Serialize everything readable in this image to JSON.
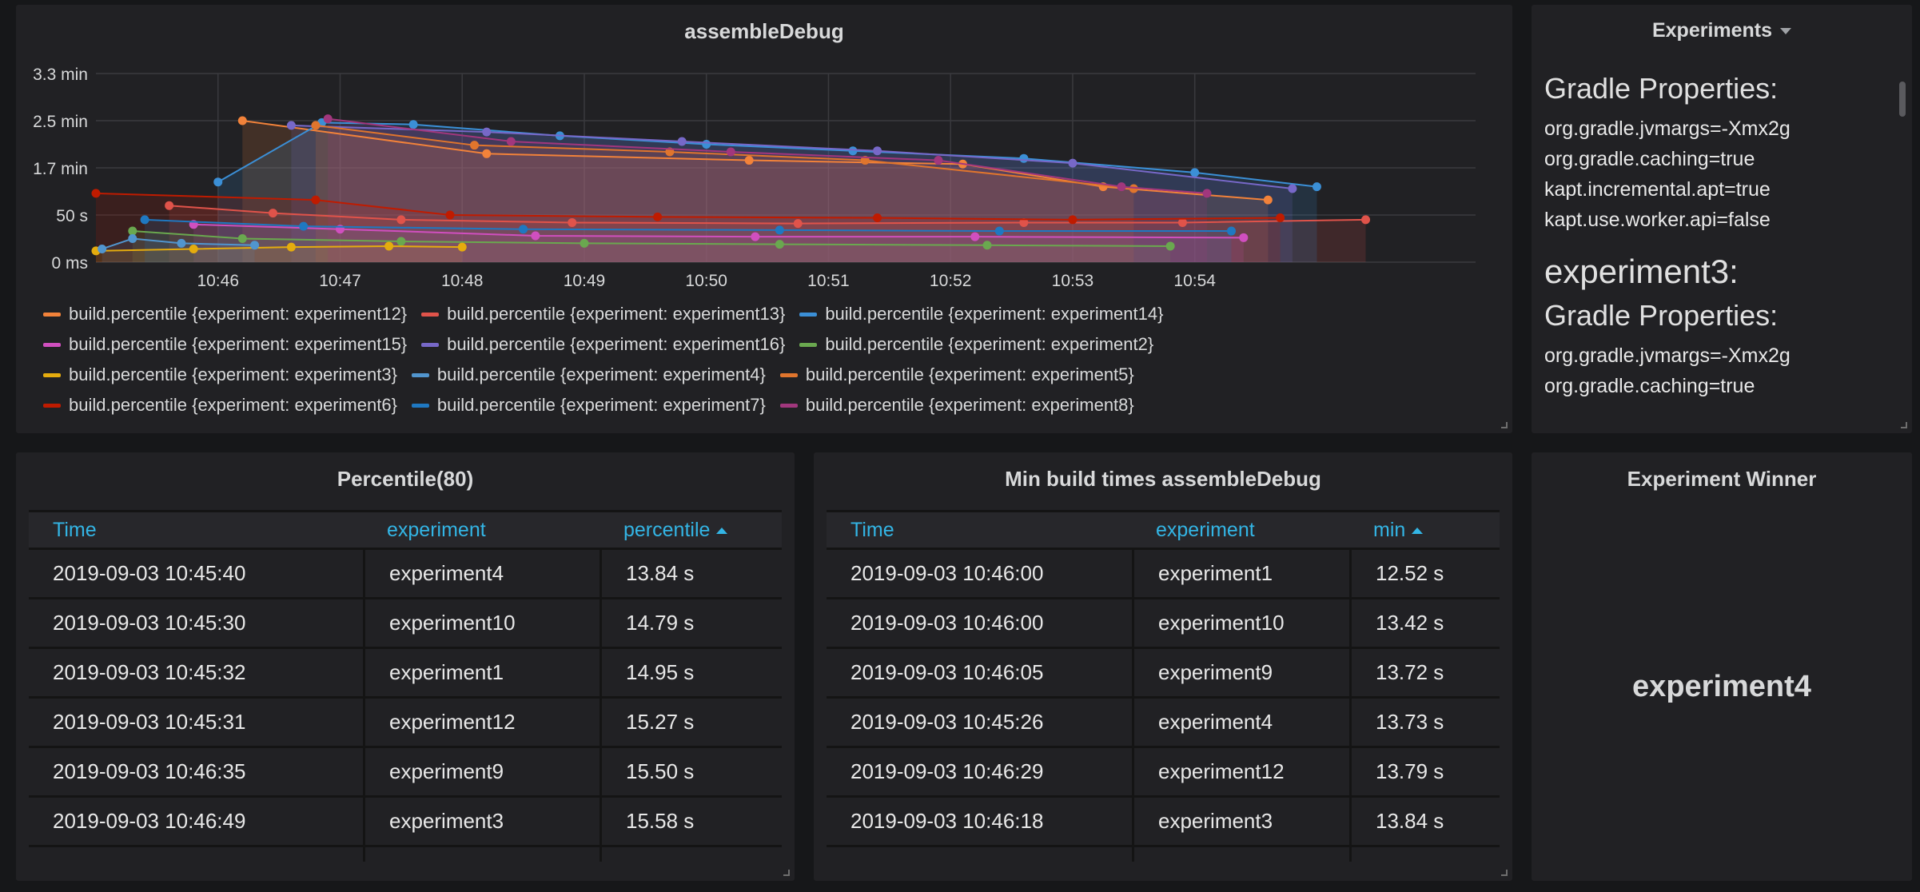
{
  "graph": {
    "title": "assembleDebug",
    "y_ticks": [
      "3.3 min",
      "2.5 min",
      "1.7 min",
      "50 s",
      "0 ms"
    ],
    "x_ticks": [
      "10:46",
      "10:47",
      "10:48",
      "10:49",
      "10:50",
      "10:51",
      "10:52",
      "10:53",
      "10:54"
    ]
  },
  "chart_data": {
    "type": "area",
    "title": "assembleDebug",
    "x_ticks": [
      "10:46",
      "10:47",
      "10:48",
      "10:49",
      "10:50",
      "10:51",
      "10:52",
      "10:53",
      "10:54"
    ],
    "y_ticks": [
      "0 ms",
      "50 s",
      "1.7 min",
      "2.5 min",
      "3.3 min"
    ],
    "ylim_seconds": [
      0,
      200
    ],
    "x_unit": "minutes since 10:45 (approx)",
    "series": [
      {
        "name": "build.percentile {experiment: experiment12}",
        "color": "#f2823a",
        "points": [
          [
            1.2,
            150
          ],
          [
            3.2,
            115
          ],
          [
            5.35,
            108
          ],
          [
            7.1,
            104
          ],
          [
            8.25,
            80
          ],
          [
            9.6,
            66
          ]
        ]
      },
      {
        "name": "build.percentile {experiment: experiment13}",
        "color": "#e0534a",
        "points": [
          [
            0.6,
            60
          ],
          [
            1.45,
            52
          ],
          [
            2.5,
            45
          ],
          [
            3.9,
            42
          ],
          [
            5.75,
            41
          ],
          [
            7.6,
            42
          ],
          [
            8.9,
            42
          ],
          [
            10.4,
            45
          ]
        ]
      },
      {
        "name": "build.percentile {experiment: experiment14}",
        "color": "#3b8fd6",
        "points": [
          [
            1.0,
            85
          ],
          [
            1.85,
            148
          ],
          [
            2.6,
            146
          ],
          [
            3.8,
            134
          ],
          [
            5.0,
            125
          ],
          [
            6.2,
            118
          ],
          [
            7.6,
            110
          ],
          [
            9.0,
            95
          ],
          [
            10.0,
            80
          ]
        ]
      },
      {
        "name": "build.percentile {experiment: experiment15}",
        "color": "#d04fbf",
        "points": [
          [
            0.8,
            40
          ],
          [
            2.0,
            35
          ],
          [
            3.6,
            28
          ],
          [
            5.4,
            27
          ],
          [
            7.2,
            27
          ],
          [
            9.4,
            26
          ]
        ]
      },
      {
        "name": "build.percentile {experiment: experiment16}",
        "color": "#7768c8",
        "points": [
          [
            1.6,
            145
          ],
          [
            3.2,
            138
          ],
          [
            4.8,
            128
          ],
          [
            6.4,
            118
          ],
          [
            8.0,
            105
          ],
          [
            9.8,
            78
          ]
        ]
      },
      {
        "name": "build.percentile {experiment: experiment2}",
        "color": "#6aa84f",
        "points": [
          [
            0.3,
            33
          ],
          [
            1.2,
            25
          ],
          [
            2.5,
            22
          ],
          [
            4.0,
            20
          ],
          [
            5.6,
            19
          ],
          [
            7.3,
            18
          ],
          [
            8.8,
            17
          ]
        ]
      },
      {
        "name": "build.percentile {experiment: experiment3}",
        "color": "#e5ac0e",
        "points": [
          [
            0.0,
            12
          ],
          [
            0.8,
            14
          ],
          [
            1.6,
            16
          ],
          [
            2.4,
            17
          ],
          [
            3.0,
            16
          ]
        ]
      },
      {
        "name": "build.percentile {experiment: experiment4}",
        "color": "#5195ce",
        "points": [
          [
            0.05,
            14
          ],
          [
            0.3,
            25
          ],
          [
            0.7,
            20
          ],
          [
            1.3,
            18
          ]
        ]
      },
      {
        "name": "build.percentile {experiment: experiment5}",
        "color": "#e0752d",
        "points": [
          [
            1.8,
            145
          ],
          [
            3.1,
            124
          ],
          [
            4.7,
            117
          ],
          [
            6.3,
            108
          ],
          [
            8.5,
            78
          ]
        ]
      },
      {
        "name": "build.percentile {experiment: experiment6}",
        "color": "#bf1b00",
        "points": [
          [
            0.0,
            73
          ],
          [
            1.8,
            66
          ],
          [
            2.9,
            50
          ],
          [
            4.6,
            48
          ],
          [
            6.4,
            47
          ],
          [
            8.0,
            45
          ],
          [
            9.7,
            47
          ]
        ]
      },
      {
        "name": "build.percentile {experiment: experiment7}",
        "color": "#1f78c1",
        "points": [
          [
            0.4,
            45
          ],
          [
            1.7,
            38
          ],
          [
            3.5,
            35
          ],
          [
            5.6,
            34
          ],
          [
            7.4,
            33
          ],
          [
            9.3,
            33
          ]
        ]
      },
      {
        "name": "build.percentile {experiment: experiment8}",
        "color": "#a1377d",
        "points": [
          [
            1.9,
            152
          ],
          [
            3.4,
            128
          ],
          [
            5.2,
            117
          ],
          [
            6.9,
            108
          ],
          [
            8.4,
            80
          ],
          [
            9.1,
            73
          ]
        ]
      }
    ]
  },
  "legend": [
    [
      "build.percentile {experiment: experiment12}",
      "build.percentile {experiment: experiment13}",
      "build.percentile {experiment: experiment14}"
    ],
    [
      "build.percentile {experiment: experiment15}",
      "build.percentile {experiment: experiment16}",
      "build.percentile {experiment: experiment2}"
    ],
    [
      "build.percentile {experiment: experiment3}",
      "build.percentile {experiment: experiment4}",
      "build.percentile {experiment: experiment5}"
    ],
    [
      "build.percentile {experiment: experiment6}",
      "build.percentile {experiment: experiment7}",
      "build.percentile {experiment: experiment8}"
    ]
  ],
  "legend_colors": [
    [
      "#f2823a",
      "#e0534a",
      "#3b8fd6"
    ],
    [
      "#d04fbf",
      "#7768c8",
      "#6aa84f"
    ],
    [
      "#e5ac0e",
      "#5195ce",
      "#e0752d"
    ],
    [
      "#bf1b00",
      "#1f78c1",
      "#a1377d"
    ]
  ],
  "experiments": {
    "title": "Experiments",
    "heading1": "Gradle Properties:",
    "props1": [
      "org.gradle.jvmargs=-Xmx2g",
      "org.gradle.caching=true",
      "kapt.incremental.apt=true",
      "kapt.use.worker.api=false"
    ],
    "section": "experiment3:",
    "heading2": "Gradle Properties:",
    "props2": [
      "org.gradle.jvmargs=-Xmx2g",
      "org.gradle.caching=true"
    ]
  },
  "percentile_table": {
    "title": "Percentile(80)",
    "columns": [
      "Time",
      "experiment",
      "percentile"
    ],
    "rows": [
      [
        "2019-09-03 10:45:40",
        "experiment4",
        "13.84 s"
      ],
      [
        "2019-09-03 10:45:30",
        "experiment10",
        "14.79 s"
      ],
      [
        "2019-09-03 10:45:32",
        "experiment1",
        "14.95 s"
      ],
      [
        "2019-09-03 10:45:31",
        "experiment12",
        "15.27 s"
      ],
      [
        "2019-09-03 10:46:35",
        "experiment9",
        "15.50 s"
      ],
      [
        "2019-09-03 10:46:49",
        "experiment3",
        "15.58 s"
      ]
    ]
  },
  "min_table": {
    "title": "Min build times assembleDebug",
    "columns": [
      "Time",
      "experiment",
      "min"
    ],
    "rows": [
      [
        "2019-09-03 10:46:00",
        "experiment1",
        "12.52 s"
      ],
      [
        "2019-09-03 10:46:00",
        "experiment10",
        "13.42 s"
      ],
      [
        "2019-09-03 10:46:05",
        "experiment9",
        "13.72 s"
      ],
      [
        "2019-09-03 10:45:26",
        "experiment4",
        "13.73 s"
      ],
      [
        "2019-09-03 10:46:29",
        "experiment12",
        "13.79 s"
      ],
      [
        "2019-09-03 10:46:18",
        "experiment3",
        "13.84 s"
      ]
    ]
  },
  "winner": {
    "title": "Experiment Winner",
    "value": "experiment4"
  }
}
